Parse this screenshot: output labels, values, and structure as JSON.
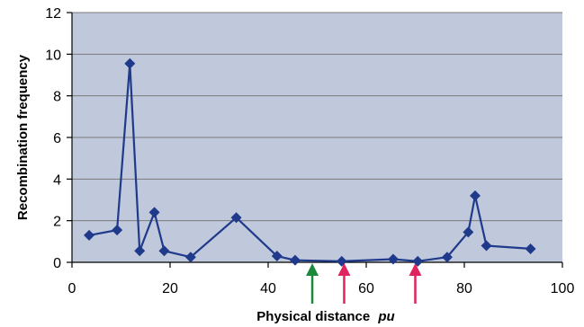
{
  "chart_data": {
    "type": "line",
    "title": "",
    "xlabel": "Physical distance",
    "xlabel_unit": "pu",
    "ylabel": "Recombination frequency",
    "xlim": [
      0,
      100
    ],
    "ylim": [
      0,
      12
    ],
    "xticks": [
      0,
      20,
      40,
      60,
      80,
      100
    ],
    "yticks": [
      0,
      2,
      4,
      6,
      8,
      10,
      12
    ],
    "grid": "horizontal",
    "legend": "none",
    "series": [
      {
        "x": [
          3.5,
          9.2,
          11.8,
          13.8,
          16.8,
          18.8,
          24.2,
          33.5,
          41.8,
          45.5,
          55,
          65.5,
          70.5,
          76.5,
          80.8,
          82.2,
          84.5,
          93.5
        ],
        "y": [
          1.3,
          1.55,
          9.55,
          0.55,
          2.4,
          0.55,
          0.25,
          2.15,
          0.3,
          0.1,
          0.05,
          0.15,
          0.05,
          0.25,
          1.45,
          3.2,
          0.8,
          0.65
        ]
      }
    ],
    "markers": [
      {
        "x": 49,
        "color": "#1a8a3a"
      },
      {
        "x": 55.5,
        "color": "#e0245e"
      },
      {
        "x": 70,
        "color": "#e0245e"
      }
    ]
  },
  "colors": {
    "plot_background": "#c0c8dc",
    "series": "#1f3a8a",
    "gridline": "#7a7a7a",
    "axis": "#000000"
  }
}
